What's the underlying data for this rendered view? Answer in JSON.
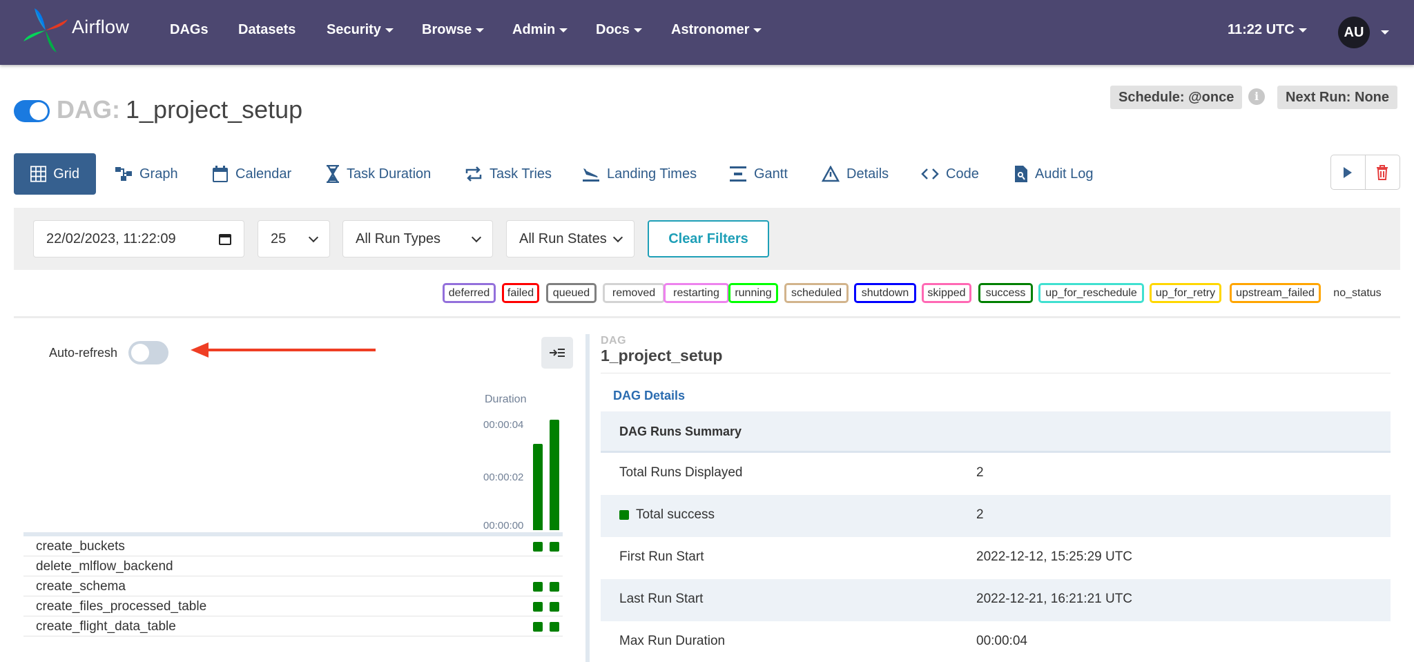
{
  "nav": {
    "brand": "Airflow",
    "items": [
      "DAGs",
      "Datasets",
      "Security",
      "Browse",
      "Admin",
      "Docs",
      "Astronomer"
    ],
    "time": "11:22 UTC",
    "avatar": "AU"
  },
  "dag": {
    "prefix": "DAG:",
    "name": "1_project_setup",
    "schedule": "Schedule: @once",
    "next_run": "Next Run: None",
    "paused": false
  },
  "tabs": [
    "Grid",
    "Graph",
    "Calendar",
    "Task Duration",
    "Task Tries",
    "Landing Times",
    "Gantt",
    "Details",
    "Code",
    "Audit Log"
  ],
  "filters": {
    "datetime": "22/02/2023, 11:22:09",
    "num_runs": "25",
    "run_types": "All Run Types",
    "run_states": "All Run States",
    "clear": "Clear Filters"
  },
  "states": [
    {
      "name": "deferred",
      "color": "#9370db"
    },
    {
      "name": "failed",
      "color": "#ff0000"
    },
    {
      "name": "queued",
      "color": "#808080"
    },
    {
      "name": "removed",
      "color": "#d3d3d3"
    },
    {
      "name": "restarting",
      "color": "#ee82ee"
    },
    {
      "name": "running",
      "color": "#00ff00"
    },
    {
      "name": "scheduled",
      "color": "#d2b48c"
    },
    {
      "name": "shutdown",
      "color": "#0000ff"
    },
    {
      "name": "skipped",
      "color": "#ff69b4"
    },
    {
      "name": "success",
      "color": "#008000"
    },
    {
      "name": "up_for_reschedule",
      "color": "#40e0d0"
    },
    {
      "name": "up_for_retry",
      "color": "#ffd700"
    },
    {
      "name": "upstream_failed",
      "color": "#ffa500"
    },
    {
      "name": "no_status",
      "color": ""
    }
  ],
  "grid": {
    "auto_refresh_label": "Auto-refresh",
    "auto_refresh": false,
    "duration_label": "Duration",
    "ticks": [
      "00:00:04",
      "00:00:02",
      "00:00:00"
    ],
    "run_durations_sec": [
      3.3,
      4.2
    ],
    "tasks": [
      {
        "name": "create_buckets",
        "runs": [
          "success",
          "success"
        ]
      },
      {
        "name": "delete_mlflow_backend",
        "runs": []
      },
      {
        "name": "create_schema",
        "runs": [
          "success",
          "success"
        ]
      },
      {
        "name": "create_files_processed_table",
        "runs": [
          "success",
          "success"
        ]
      },
      {
        "name": "create_flight_data_table",
        "runs": [
          "success",
          "success"
        ]
      }
    ]
  },
  "details": {
    "section_label": "DAG",
    "dag_name": "1_project_setup",
    "tab": "DAG Details",
    "summary_title": "DAG Runs Summary",
    "rows": [
      {
        "key": "Total Runs Displayed",
        "value": "2"
      },
      {
        "key": "Total success",
        "value": "2"
      },
      {
        "key": "First Run Start",
        "value": "2022-12-12, 15:25:29 UTC"
      },
      {
        "key": "Last Run Start",
        "value": "2022-12-21, 16:21:21 UTC"
      },
      {
        "key": "Max Run Duration",
        "value": "00:00:04"
      }
    ]
  }
}
